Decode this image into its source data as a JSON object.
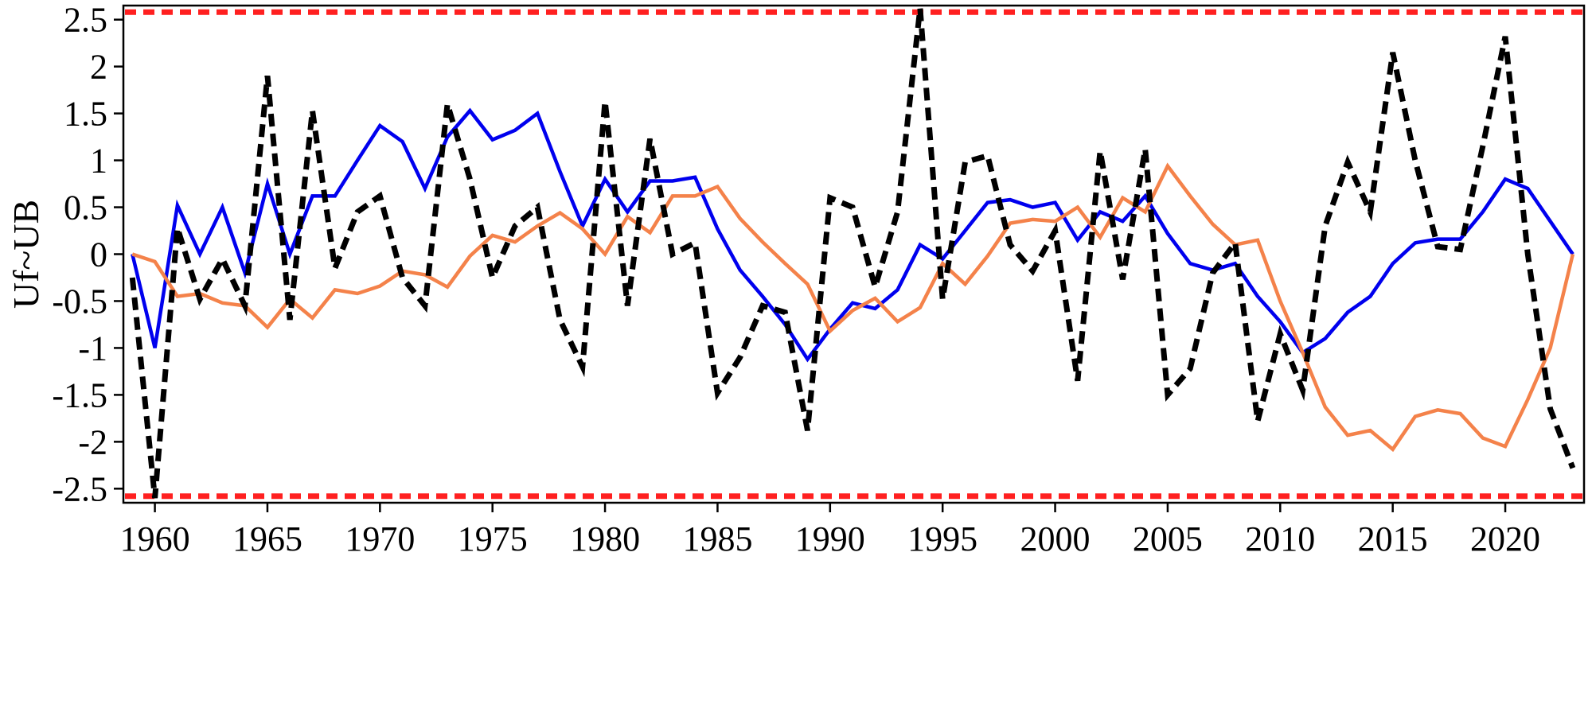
{
  "chart_data": {
    "type": "line",
    "title": "",
    "xlabel": "",
    "ylabel": "Uf~UB",
    "xlim": [
      1958.6,
      2023.5
    ],
    "ylim": [
      -2.65,
      2.65
    ],
    "grid": false,
    "legend": "none",
    "x": [
      1959,
      1960,
      1961,
      1962,
      1963,
      1964,
      1965,
      1966,
      1967,
      1968,
      1969,
      1970,
      1971,
      1972,
      1973,
      1974,
      1975,
      1976,
      1977,
      1978,
      1979,
      1980,
      1981,
      1982,
      1983,
      1984,
      1985,
      1986,
      1987,
      1988,
      1989,
      1990,
      1991,
      1992,
      1993,
      1994,
      1995,
      1996,
      1997,
      1998,
      1999,
      2000,
      2001,
      2002,
      2003,
      2004,
      2005,
      2006,
      2007,
      2008,
      2009,
      2010,
      2011,
      2012,
      2013,
      2014,
      2015,
      2016,
      2017,
      2018,
      2019,
      2020,
      2021,
      2022,
      2023
    ],
    "x_ticks": [
      1960,
      1965,
      1970,
      1975,
      1980,
      1985,
      1990,
      1995,
      2000,
      2005,
      2010,
      2015,
      2020
    ],
    "x_tick_labels": [
      "1960",
      "1965",
      "1970",
      "1975",
      "1980",
      "1985",
      "1990",
      "1995",
      "2000",
      "2005",
      "2010",
      "2015",
      "2020"
    ],
    "y_ticks": [
      -2.5,
      -2,
      -1.5,
      -1,
      -0.5,
      0,
      0.5,
      1,
      1.5,
      2,
      2.5
    ],
    "y_tick_labels": [
      "-2.5",
      "-2",
      "-1.5",
      "-1",
      "-0.5",
      "0",
      "0.5",
      "1",
      "1.5",
      "2",
      "2.5"
    ],
    "series": [
      {
        "color": "#0000ee",
        "style": "solid",
        "values": [
          0,
          -1.0,
          0.52,
          0.0,
          0.5,
          -0.2,
          0.75,
          0.0,
          0.62,
          0.62,
          1.0,
          1.37,
          1.2,
          0.7,
          1.25,
          1.53,
          1.22,
          1.32,
          1.5,
          0.88,
          0.3,
          0.8,
          0.45,
          0.78,
          0.78,
          0.82,
          0.27,
          -0.17,
          -0.45,
          -0.75,
          -1.12,
          -0.8,
          -0.52,
          -0.58,
          -0.38,
          0.1,
          -0.05,
          0.25,
          0.55,
          0.58,
          0.5,
          0.55,
          0.15,
          0.45,
          0.35,
          0.62,
          0.22,
          -0.1,
          -0.17,
          -0.1,
          -0.45,
          -0.72,
          -1.05,
          -0.9,
          -0.62,
          -0.45,
          -0.1,
          0.12,
          0.16,
          0.16,
          0.45,
          0.8,
          0.7,
          0.35,
          0.0
        ]
      },
      {
        "color": "#f4824a",
        "style": "solid",
        "values": [
          0,
          -0.08,
          -0.45,
          -0.42,
          -0.52,
          -0.55,
          -0.78,
          -0.48,
          -0.68,
          -0.38,
          -0.42,
          -0.34,
          -0.18,
          -0.22,
          -0.35,
          -0.02,
          0.2,
          0.13,
          0.3,
          0.44,
          0.27,
          0.0,
          0.4,
          0.23,
          0.62,
          0.62,
          0.72,
          0.38,
          0.13,
          -0.1,
          -0.32,
          -0.82,
          -0.6,
          -0.47,
          -0.72,
          -0.57,
          -0.1,
          -0.32,
          -0.02,
          0.33,
          0.37,
          0.35,
          0.5,
          0.18,
          0.6,
          0.45,
          0.94,
          0.62,
          0.32,
          0.1,
          0.15,
          -0.5,
          -1.05,
          -1.63,
          -1.93,
          -1.88,
          -2.08,
          -1.73,
          -1.66,
          -1.7,
          -1.96,
          -2.05,
          -1.55,
          -1.0,
          0.0
        ]
      },
      {
        "color": "#000000",
        "style": "dashed",
        "values": [
          -0.25,
          -2.6,
          0.28,
          -0.48,
          -0.05,
          -0.55,
          1.9,
          -0.7,
          1.53,
          -0.15,
          0.45,
          0.62,
          -0.25,
          -0.55,
          1.6,
          0.8,
          -0.25,
          0.3,
          0.5,
          -0.7,
          -1.2,
          1.63,
          -0.55,
          1.23,
          0.0,
          0.12,
          -1.48,
          -1.1,
          -0.55,
          -0.62,
          -1.88,
          0.6,
          0.5,
          -0.35,
          0.45,
          2.62,
          -0.48,
          0.98,
          1.05,
          0.1,
          -0.18,
          0.25,
          -1.35,
          1.1,
          -0.27,
          1.12,
          -1.5,
          -1.22,
          -0.2,
          0.12,
          -1.78,
          -0.85,
          -1.45,
          0.3,
          0.98,
          0.45,
          2.15,
          1.0,
          0.08,
          0.05,
          1.15,
          2.32,
          0.0,
          -1.65,
          -2.28
        ]
      }
    ],
    "reference_lines": [
      {
        "y": 2.58,
        "color": "#ff2020",
        "style": "dashed"
      },
      {
        "y": -2.58,
        "color": "#ff2020",
        "style": "dashed"
      }
    ]
  }
}
